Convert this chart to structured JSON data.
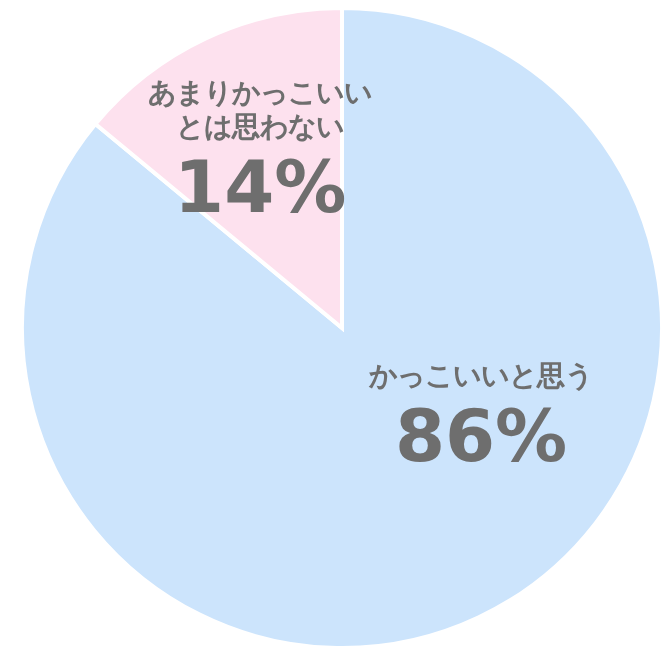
{
  "chart_data": {
    "type": "pie",
    "categories": [
      "かっこいいと思う",
      "あまりかっこいいとは思わない"
    ],
    "values": [
      86,
      14
    ],
    "colors": [
      "#cce4fc",
      "#fde1ee"
    ],
    "value_labels": [
      "86%",
      "14%"
    ]
  }
}
